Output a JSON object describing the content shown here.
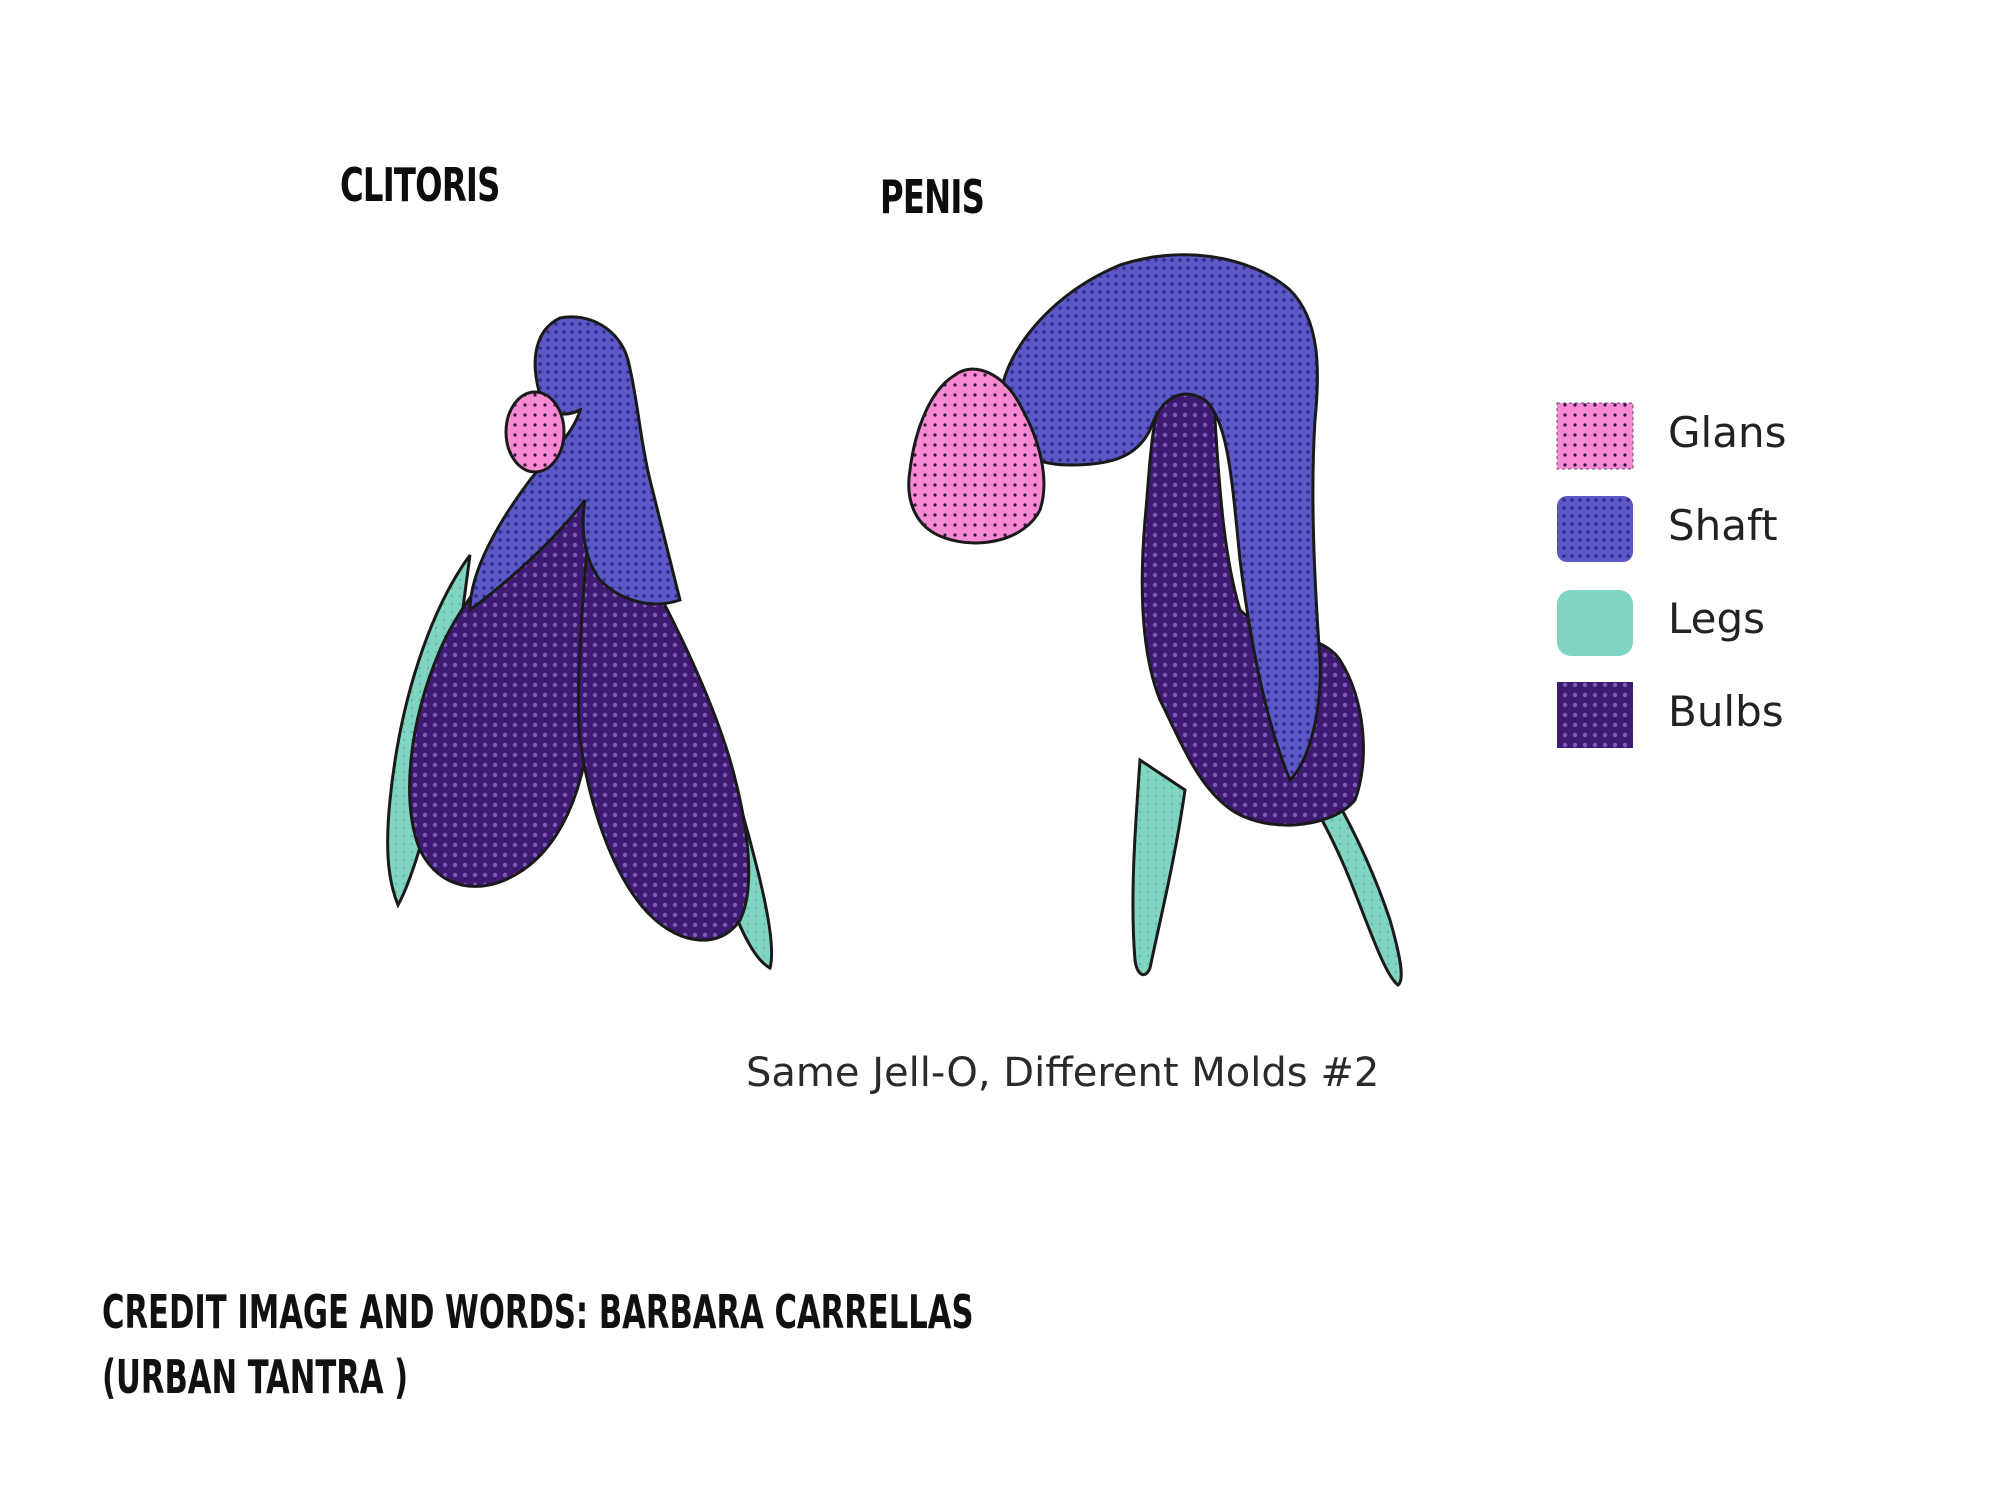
{
  "titles": {
    "clitoris": "CLITORIS",
    "penis": "PENIS"
  },
  "legend": {
    "items": [
      {
        "label": "Glans",
        "color": "#f78ad3"
      },
      {
        "label": "Shaft",
        "color": "#5a58c4"
      },
      {
        "label": "Legs",
        "color": "#7fd5c2"
      },
      {
        "label": "Bulbs",
        "color": "#3f1a72"
      }
    ]
  },
  "caption": "Same Jell-O, Different Molds #2",
  "credit": {
    "line1": "CREDIT IMAGE AND WORDS: BARBARA CARRELLAS",
    "line2": "(URBAN TANTRA )"
  },
  "colors": {
    "glans": "#f78ad3",
    "shaft": "#5a58c4",
    "legs": "#7fd5c2",
    "bulbs": "#3f1a72",
    "outline": "#1a1a1a"
  }
}
